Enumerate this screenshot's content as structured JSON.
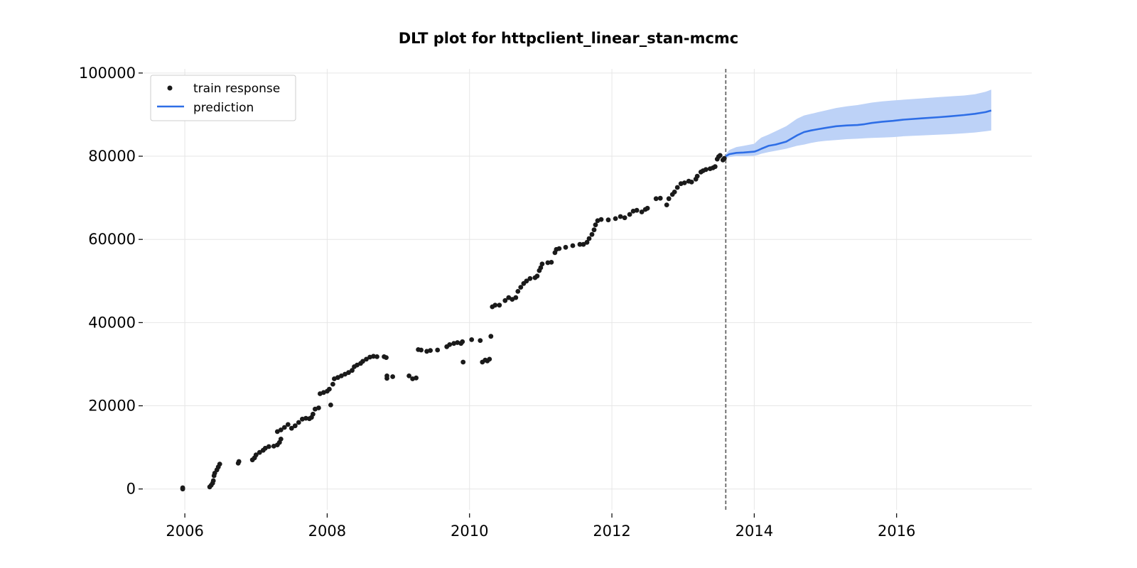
{
  "chart_data": {
    "type": "line",
    "title": "DLT plot for httpclient_linear_stan-mcmc",
    "xlabel": "",
    "ylabel": "",
    "xlim": [
      2005.42,
      2017.9
    ],
    "ylim": [
      -5000,
      101000
    ],
    "grid": true,
    "legend_position": "top-left",
    "x_ticks": [
      2006,
      2008,
      2010,
      2012,
      2014,
      2016
    ],
    "x_tick_labels": [
      "2006",
      "2008",
      "2010",
      "2012",
      "2014",
      "2016"
    ],
    "y_ticks": [
      0,
      20000,
      40000,
      60000,
      80000,
      100000
    ],
    "y_tick_labels": [
      "0",
      "20000",
      "40000",
      "60000",
      "80000",
      "100000"
    ],
    "train_end": 2013.6,
    "colors": {
      "train": "#1a1a1a",
      "prediction": "#2e6ee6",
      "band": "#bdd2f7",
      "divider": "#666666"
    },
    "series": [
      {
        "name": "train response",
        "kind": "scatter",
        "points": [
          [
            2005.97,
            0
          ],
          [
            2005.97,
            300
          ],
          [
            2006.35,
            500
          ],
          [
            2006.37,
            900
          ],
          [
            2006.39,
            1400
          ],
          [
            2006.4,
            2000
          ],
          [
            2006.41,
            3200
          ],
          [
            2006.42,
            3800
          ],
          [
            2006.45,
            4600
          ],
          [
            2006.47,
            5300
          ],
          [
            2006.49,
            6000
          ],
          [
            2006.75,
            6200
          ],
          [
            2006.76,
            6600
          ],
          [
            2006.95,
            7000
          ],
          [
            2006.98,
            7500
          ],
          [
            2007.0,
            8200
          ],
          [
            2007.05,
            8800
          ],
          [
            2007.1,
            9300
          ],
          [
            2007.13,
            9800
          ],
          [
            2007.18,
            10200
          ],
          [
            2007.25,
            10300
          ],
          [
            2007.3,
            10600
          ],
          [
            2007.33,
            11200
          ],
          [
            2007.35,
            12000
          ],
          [
            2007.3,
            13800
          ],
          [
            2007.35,
            14200
          ],
          [
            2007.4,
            14800
          ],
          [
            2007.45,
            15500
          ],
          [
            2007.5,
            14600
          ],
          [
            2007.55,
            15200
          ],
          [
            2007.6,
            16000
          ],
          [
            2007.65,
            16800
          ],
          [
            2007.7,
            17000
          ],
          [
            2007.75,
            16900
          ],
          [
            2007.78,
            17200
          ],
          [
            2007.8,
            18000
          ],
          [
            2007.83,
            19200
          ],
          [
            2007.88,
            19500
          ],
          [
            2007.9,
            22900
          ],
          [
            2007.95,
            23200
          ],
          [
            2008.0,
            23500
          ],
          [
            2008.03,
            24000
          ],
          [
            2008.05,
            20200
          ],
          [
            2008.08,
            25200
          ],
          [
            2008.1,
            26500
          ],
          [
            2008.15,
            26800
          ],
          [
            2008.2,
            27200
          ],
          [
            2008.25,
            27600
          ],
          [
            2008.3,
            28000
          ],
          [
            2008.35,
            28500
          ],
          [
            2008.38,
            29400
          ],
          [
            2008.42,
            29800
          ],
          [
            2008.47,
            30200
          ],
          [
            2008.5,
            30700
          ],
          [
            2008.55,
            31200
          ],
          [
            2008.6,
            31700
          ],
          [
            2008.65,
            31900
          ],
          [
            2008.7,
            31800
          ],
          [
            2008.8,
            31800
          ],
          [
            2008.83,
            31600
          ],
          [
            2008.84,
            27200
          ],
          [
            2008.84,
            26600
          ],
          [
            2008.92,
            27000
          ],
          [
            2009.15,
            27200
          ],
          [
            2009.2,
            26500
          ],
          [
            2009.25,
            26700
          ],
          [
            2009.28,
            33500
          ],
          [
            2009.32,
            33400
          ],
          [
            2009.4,
            33100
          ],
          [
            2009.45,
            33300
          ],
          [
            2009.55,
            33400
          ],
          [
            2009.68,
            34200
          ],
          [
            2009.72,
            34700
          ],
          [
            2009.78,
            35000
          ],
          [
            2009.83,
            35200
          ],
          [
            2009.88,
            35000
          ],
          [
            2009.91,
            30500
          ],
          [
            2009.9,
            35400
          ],
          [
            2010.03,
            35900
          ],
          [
            2010.15,
            35700
          ],
          [
            2010.18,
            30500
          ],
          [
            2010.22,
            31000
          ],
          [
            2010.25,
            30800
          ],
          [
            2010.28,
            31200
          ],
          [
            2010.3,
            36700
          ],
          [
            2010.32,
            43800
          ],
          [
            2010.36,
            44200
          ],
          [
            2010.42,
            44200
          ],
          [
            2010.5,
            45300
          ],
          [
            2010.55,
            46000
          ],
          [
            2010.6,
            45600
          ],
          [
            2010.65,
            46000
          ],
          [
            2010.68,
            47500
          ],
          [
            2010.72,
            48500
          ],
          [
            2010.76,
            49400
          ],
          [
            2010.8,
            50000
          ],
          [
            2010.85,
            50600
          ],
          [
            2010.92,
            50800
          ],
          [
            2010.95,
            51200
          ],
          [
            2010.98,
            52500
          ],
          [
            2011.0,
            53200
          ],
          [
            2011.02,
            54100
          ],
          [
            2011.1,
            54400
          ],
          [
            2011.15,
            54500
          ],
          [
            2011.2,
            56800
          ],
          [
            2011.22,
            57600
          ],
          [
            2011.26,
            57800
          ],
          [
            2011.35,
            58100
          ],
          [
            2011.45,
            58500
          ],
          [
            2011.55,
            58800
          ],
          [
            2011.6,
            58800
          ],
          [
            2011.65,
            59300
          ],
          [
            2011.68,
            60200
          ],
          [
            2011.72,
            61200
          ],
          [
            2011.75,
            62300
          ],
          [
            2011.77,
            63500
          ],
          [
            2011.8,
            64500
          ],
          [
            2011.85,
            64800
          ],
          [
            2011.95,
            64700
          ],
          [
            2012.05,
            65000
          ],
          [
            2012.12,
            65500
          ],
          [
            2012.18,
            65200
          ],
          [
            2012.25,
            66000
          ],
          [
            2012.3,
            66800
          ],
          [
            2012.35,
            67000
          ],
          [
            2012.42,
            66600
          ],
          [
            2012.47,
            67200
          ],
          [
            2012.5,
            67500
          ],
          [
            2012.62,
            69800
          ],
          [
            2012.68,
            69900
          ],
          [
            2012.77,
            68300
          ],
          [
            2012.8,
            69800
          ],
          [
            2012.85,
            70800
          ],
          [
            2012.88,
            71400
          ],
          [
            2012.92,
            72500
          ],
          [
            2012.97,
            73400
          ],
          [
            2013.02,
            73600
          ],
          [
            2013.08,
            74000
          ],
          [
            2013.12,
            73800
          ],
          [
            2013.18,
            74500
          ],
          [
            2013.2,
            75200
          ],
          [
            2013.25,
            76200
          ],
          [
            2013.28,
            76500
          ],
          [
            2013.32,
            76800
          ],
          [
            2013.38,
            77000
          ],
          [
            2013.42,
            77200
          ],
          [
            2013.45,
            77500
          ],
          [
            2013.48,
            79300
          ],
          [
            2013.5,
            79900
          ],
          [
            2013.52,
            80200
          ],
          [
            2013.56,
            79100
          ],
          [
            2013.58,
            79500
          ]
        ]
      },
      {
        "name": "prediction",
        "kind": "line",
        "x": [
          2013.6,
          2013.65,
          2013.75,
          2013.85,
          2014.0,
          2014.05,
          2014.1,
          2014.2,
          2014.3,
          2014.45,
          2014.6,
          2014.7,
          2014.8,
          2014.9,
          2015.0,
          2015.15,
          2015.3,
          2015.45,
          2015.55,
          2015.65,
          2015.8,
          2015.95,
          2016.1,
          2016.35,
          2016.6,
          2016.75,
          2016.95,
          2017.1,
          2017.25,
          2017.33
        ],
        "y": [
          80000,
          80500,
          80800,
          80900,
          81100,
          81400,
          81800,
          82500,
          82800,
          83500,
          85000,
          85800,
          86200,
          86500,
          86800,
          87200,
          87400,
          87500,
          87700,
          88000,
          88300,
          88500,
          88800,
          89100,
          89400,
          89600,
          89900,
          90200,
          90600,
          91000
        ]
      },
      {
        "name": "",
        "kind": "band",
        "x": [
          2013.6,
          2013.65,
          2013.75,
          2013.85,
          2014.0,
          2014.05,
          2014.1,
          2014.2,
          2014.3,
          2014.45,
          2014.6,
          2014.7,
          2014.8,
          2014.9,
          2015.0,
          2015.15,
          2015.3,
          2015.45,
          2015.55,
          2015.65,
          2015.8,
          2015.95,
          2016.1,
          2016.35,
          2016.6,
          2016.75,
          2016.95,
          2017.1,
          2017.25,
          2017.33
        ],
        "upper": [
          80500,
          81500,
          82200,
          82500,
          83000,
          83800,
          84500,
          85200,
          86000,
          87200,
          89000,
          89800,
          90200,
          90600,
          91000,
          91600,
          92000,
          92300,
          92600,
          92900,
          93200,
          93400,
          93600,
          93900,
          94200,
          94400,
          94600,
          94900,
          95500,
          96000
        ],
        "lower": [
          79500,
          79800,
          80000,
          80000,
          80100,
          80300,
          80600,
          81000,
          81300,
          81800,
          82500,
          82800,
          83200,
          83500,
          83700,
          83900,
          84100,
          84200,
          84300,
          84400,
          84500,
          84600,
          84800,
          85000,
          85200,
          85300,
          85500,
          85700,
          86000,
          86200
        ]
      }
    ]
  }
}
